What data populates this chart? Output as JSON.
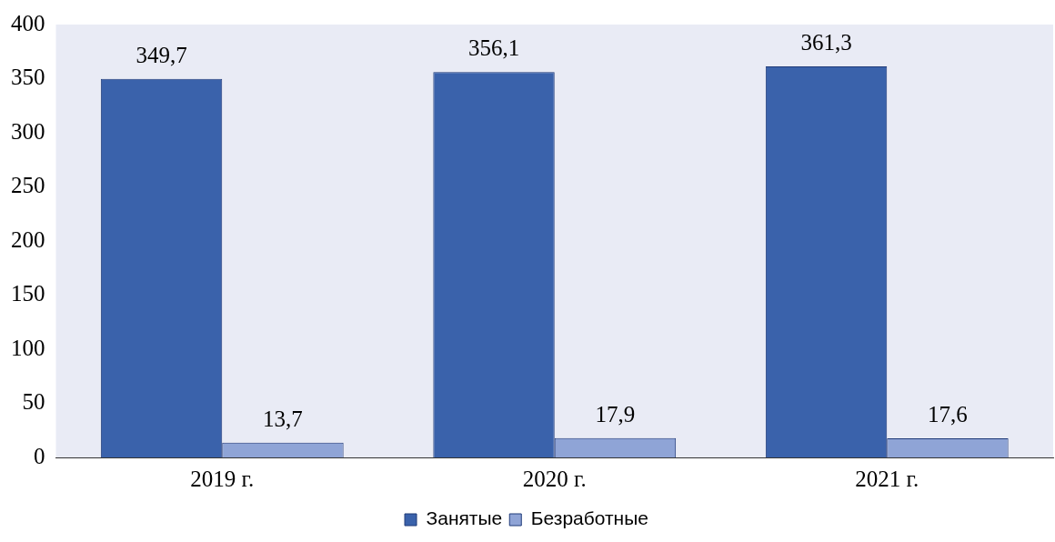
{
  "chart_data": {
    "type": "bar",
    "categories": [
      "2019 г.",
      "2020 г.",
      "2021 г."
    ],
    "series": [
      {
        "name": "Занятые",
        "color": "#3a62ab",
        "values": [
          349.7,
          356.1,
          361.3
        ],
        "value_labels": [
          "349,7",
          "356,1",
          "361,3"
        ]
      },
      {
        "name": "Безработные",
        "color": "#8fa4d6",
        "values": [
          13.7,
          17.9,
          17.6
        ],
        "value_labels": [
          "13,7",
          "17,9",
          "17,6"
        ]
      }
    ],
    "ylim": [
      0,
      400
    ],
    "yticks": [
      0,
      50,
      100,
      150,
      200,
      250,
      300,
      350,
      400
    ],
    "grid": false,
    "legend": "bottom"
  }
}
